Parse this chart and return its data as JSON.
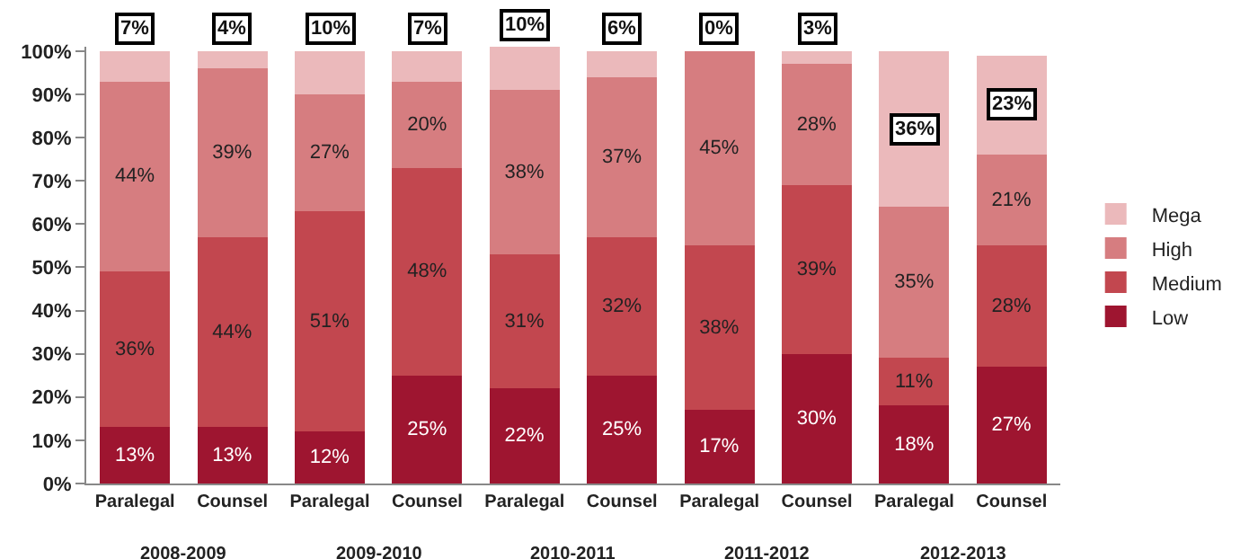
{
  "chart_data": {
    "type": "bar",
    "stacked": true,
    "categories": [
      "Paralegal",
      "Counsel",
      "Paralegal",
      "Counsel",
      "Paralegal",
      "Counsel",
      "Paralegal",
      "Counsel",
      "Paralegal",
      "Counsel"
    ],
    "series": [
      {
        "name": "Low",
        "color": "#9e1530",
        "values": [
          13,
          13,
          12,
          25,
          22,
          25,
          17,
          30,
          18,
          27
        ],
        "value_labels": [
          "13%",
          "13%",
          "12%",
          "25%",
          "22%",
          "25%",
          "17%",
          "30%",
          "18%",
          "27%"
        ]
      },
      {
        "name": "Medium",
        "color": "#c2474f",
        "values": [
          36,
          44,
          51,
          48,
          31,
          32,
          38,
          39,
          11,
          28
        ],
        "value_labels": [
          "36%",
          "44%",
          "51%",
          "48%",
          "31%",
          "32%",
          "38%",
          "39%",
          "11%",
          "28%"
        ]
      },
      {
        "name": "High",
        "color": "#d67d80",
        "values": [
          44,
          39,
          27,
          20,
          38,
          37,
          45,
          28,
          35,
          21
        ],
        "value_labels": [
          "44%",
          "39%",
          "27%",
          "20%",
          "38%",
          "37%",
          "45%",
          "28%",
          "35%",
          "21%"
        ]
      },
      {
        "name": "Mega",
        "color": "#ebb9bb",
        "values": [
          7,
          4,
          10,
          7,
          10,
          6,
          0,
          3,
          36,
          23
        ],
        "value_labels": [
          "7%",
          "4%",
          "10%",
          "7%",
          "10%",
          "6%",
          "0%",
          "3%",
          "36%",
          "23%"
        ]
      }
    ],
    "annotations": [
      "2008-2009",
      "2009-2010",
      "2010-2011",
      "2011-2012",
      "2012-2013"
    ],
    "ylim": [
      0,
      101
    ],
    "yticks": [
      {
        "value": 0,
        "label": "0%"
      },
      {
        "value": 10,
        "label": "10%"
      },
      {
        "value": 20,
        "label": "20%"
      },
      {
        "value": 30,
        "label": "30%"
      },
      {
        "value": 40,
        "label": "40%"
      },
      {
        "value": 50,
        "label": "50%"
      },
      {
        "value": 60,
        "label": "60%"
      },
      {
        "value": 70,
        "label": "70%"
      },
      {
        "value": 80,
        "label": "80%"
      },
      {
        "value": 90,
        "label": "90%"
      },
      {
        "value": 100,
        "label": "100%"
      }
    ],
    "grid": false,
    "legend": "right"
  }
}
